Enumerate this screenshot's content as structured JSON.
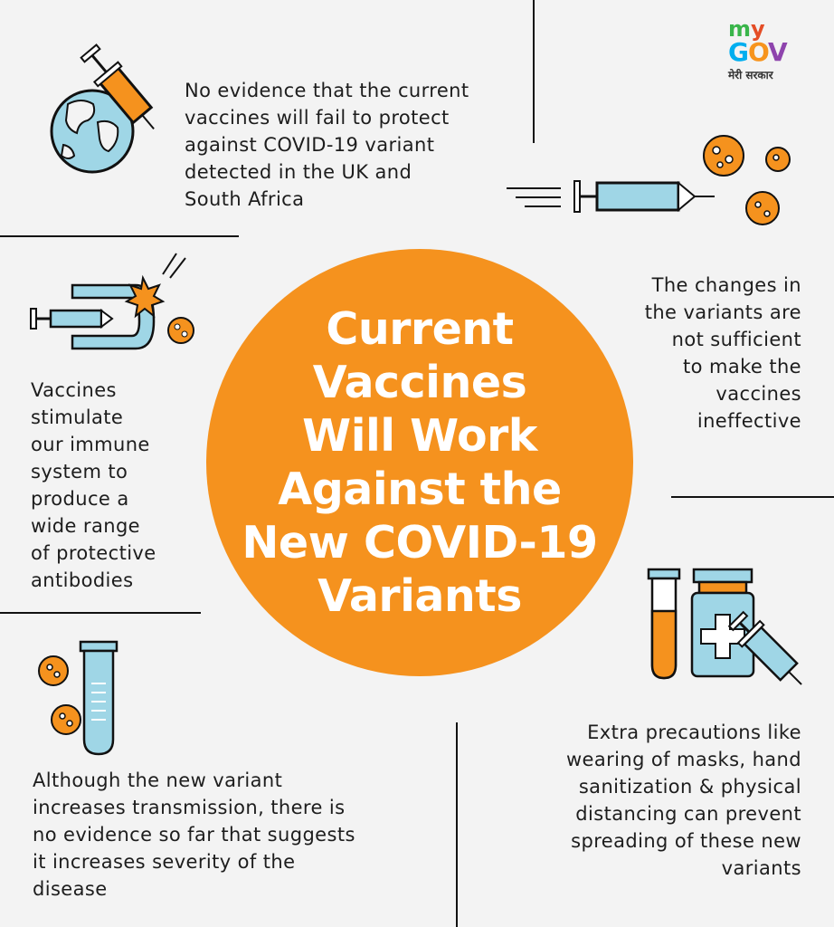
{
  "logo": {
    "text_my": "my",
    "text_gov": "GOV",
    "tagline": "मेरी सरकार",
    "colors": [
      "#e44d26",
      "#f7941d",
      "#39b54a",
      "#00aeef",
      "#8e44ad"
    ]
  },
  "center": {
    "lines": [
      "Current",
      "Vaccines",
      "Will Work",
      "Against the",
      "New COVID-19",
      "Variants"
    ],
    "color": "#f5921e"
  },
  "points": {
    "top_left": [
      "No evidence that the current",
      "vaccines will fail to protect",
      "against COVID-19 variant",
      "detected in the UK and",
      "South Africa"
    ],
    "top_right": [
      "The changes in",
      "the variants are",
      "not sufficient",
      "to make the",
      "vaccines",
      "ineffective"
    ],
    "middle_left": [
      "Vaccines",
      "stimulate",
      "our immune",
      "system to",
      "produce a",
      "wide range",
      "of protective",
      "antibodies"
    ],
    "bottom_left": [
      "Although the new variant",
      "increases transmission, there is",
      "no evidence so far that suggests",
      "it increases severity of the",
      "disease"
    ],
    "bottom_right": [
      "Extra precautions like",
      "wearing of masks, hand",
      "sanitization & physical",
      "distancing can prevent",
      "spreading of these new",
      "variants"
    ]
  },
  "icons": {
    "globe": "globe-syringe-icon",
    "syringe_virus": "syringe-virus-icon",
    "shield": "immune-shield-icon",
    "test_tube_virus": "test-tube-virus-icon",
    "medicine": "medicine-bottle-icon"
  },
  "palette": {
    "orange": "#f5921e",
    "blue": "#9fd6e6",
    "dark": "#1d1d1d",
    "background": "#f3f3f3"
  }
}
